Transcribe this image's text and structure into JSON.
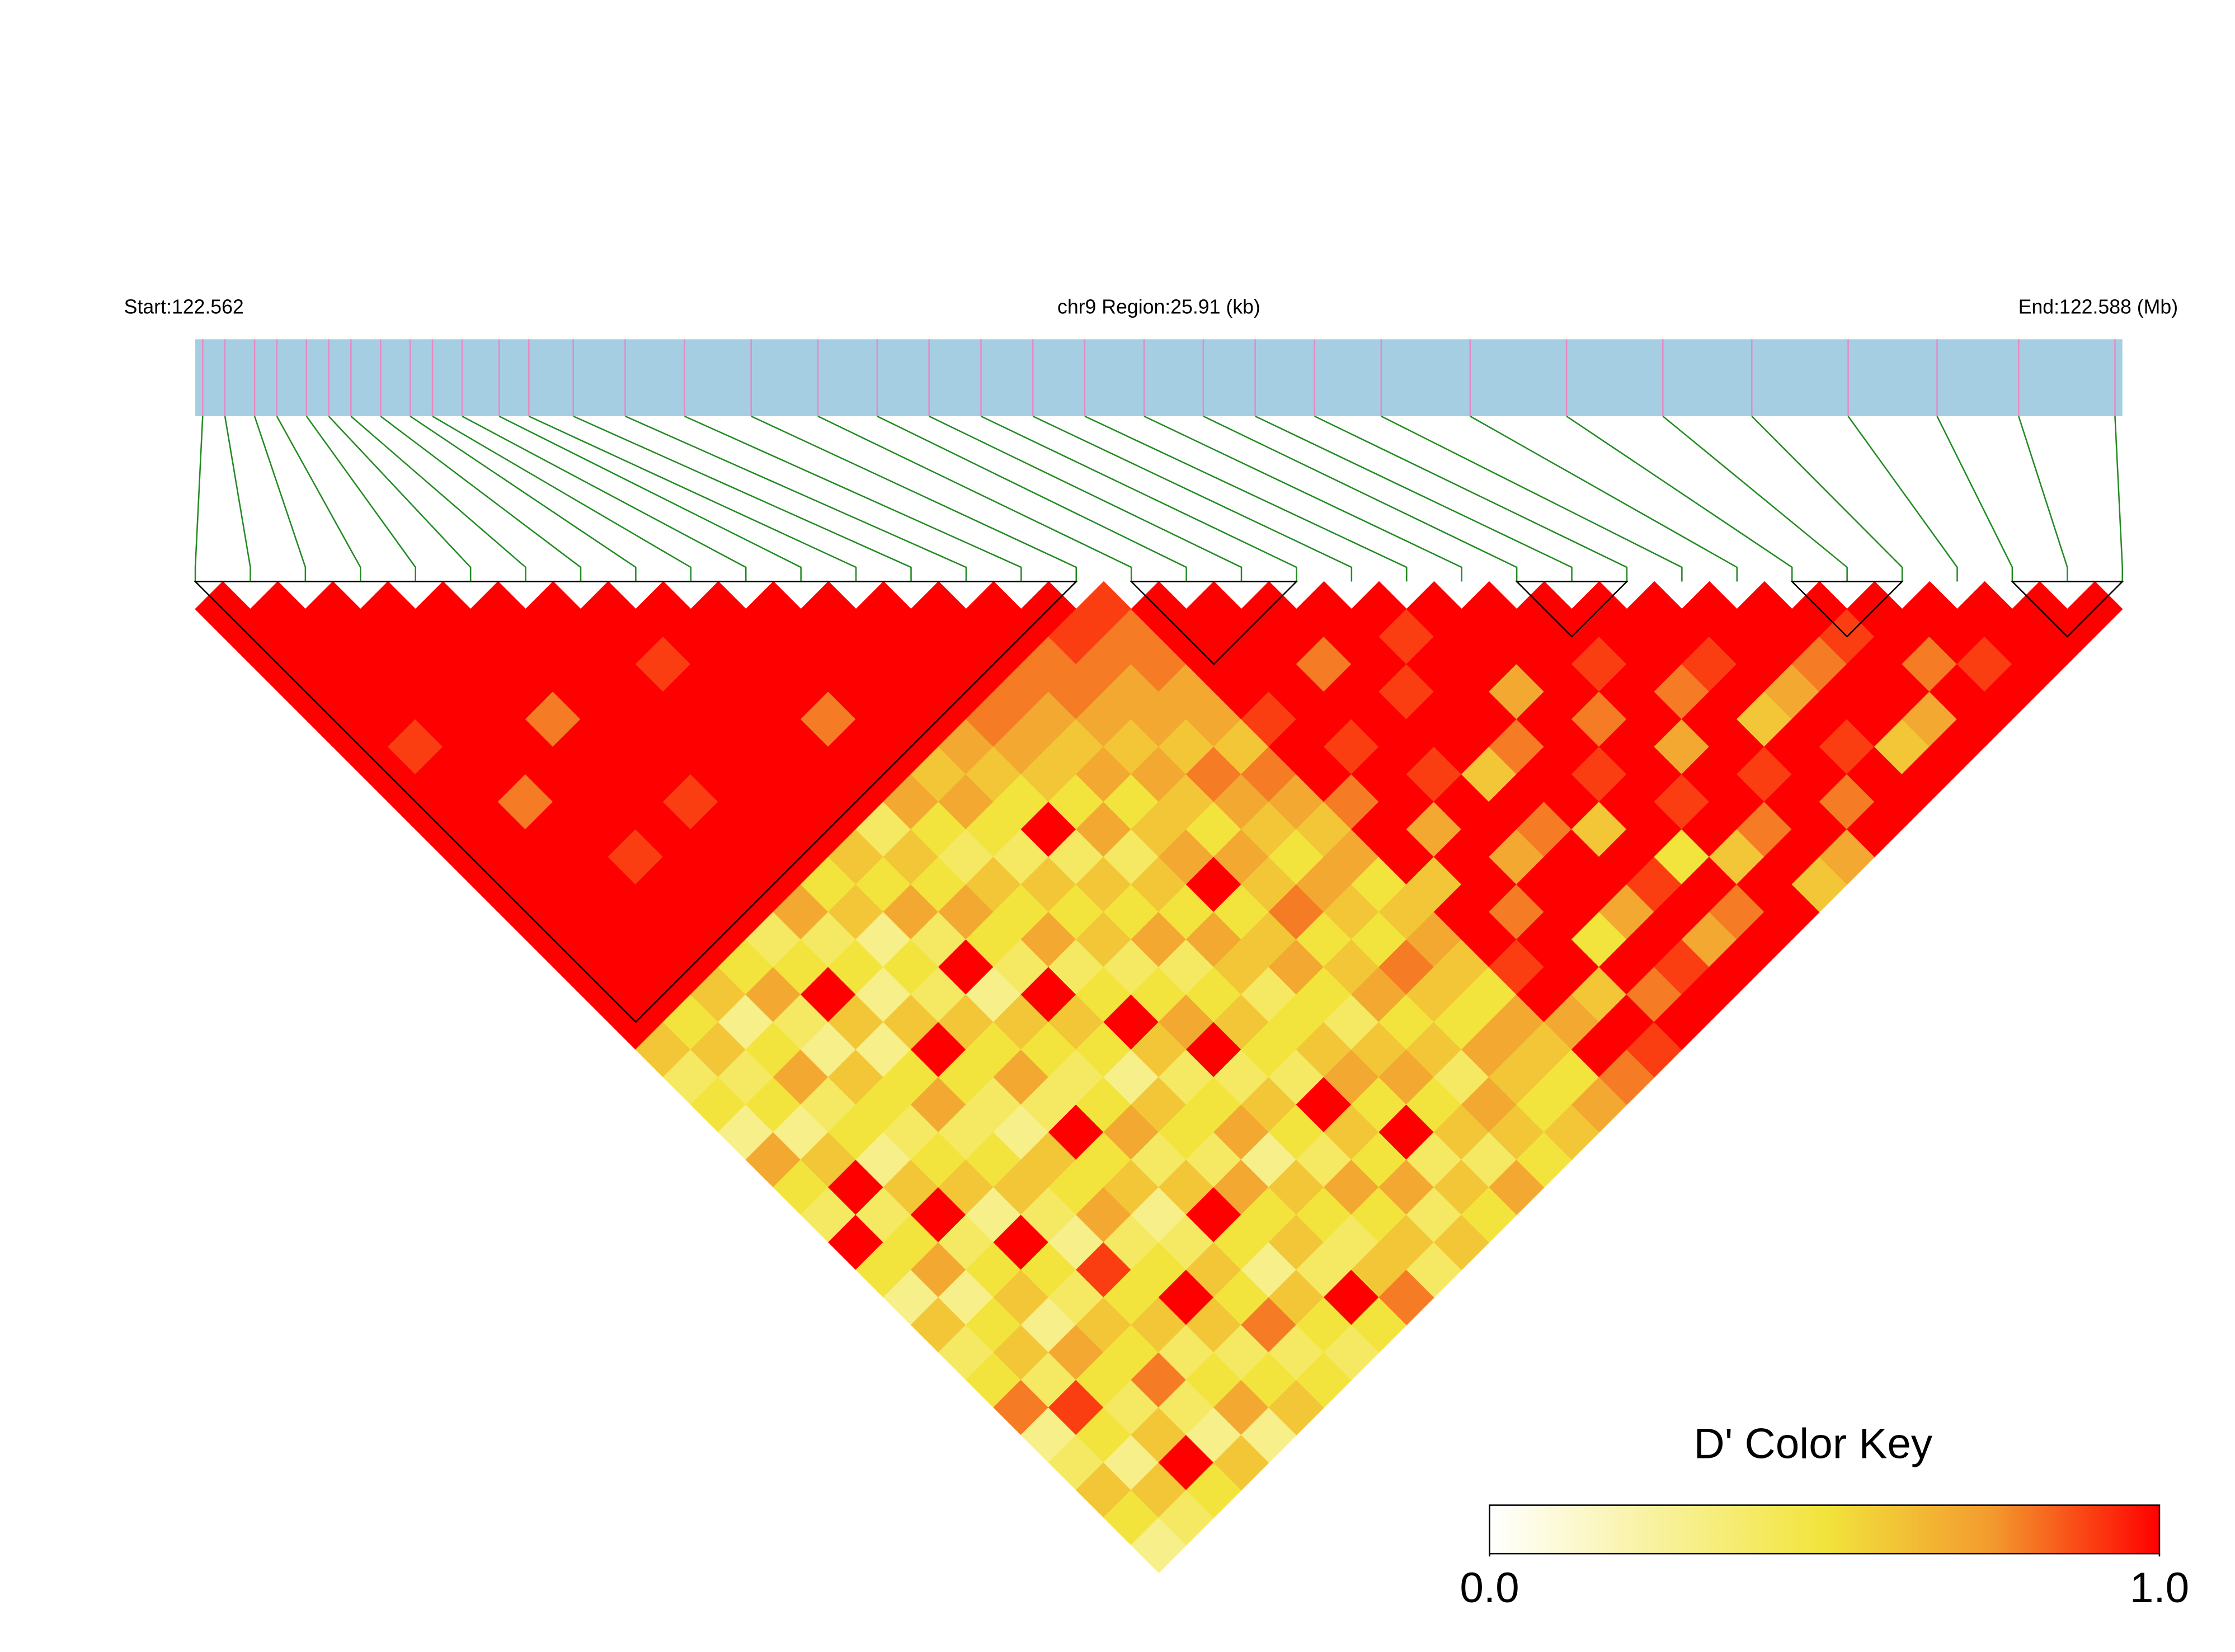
{
  "chart_data": {
    "type": "ld-heatmap",
    "start_label": "Start:122.562",
    "region_label": "chr9 Region:25.91 (kb)",
    "end_label": "End:122.588 (Mb)",
    "xlim": [
      122.562,
      122.588
    ],
    "snp_positions": [
      122.5621,
      122.5624,
      122.5628,
      122.5631,
      122.5635,
      122.5638,
      122.5641,
      122.5645,
      122.5649,
      122.5652,
      122.5656,
      122.5661,
      122.5665,
      122.5671,
      122.5678,
      122.5686,
      122.5695,
      122.5704,
      122.5712,
      122.5719,
      122.5726,
      122.5733,
      122.574,
      122.5748,
      122.5756,
      122.5763,
      122.5771,
      122.578,
      122.5792,
      122.5805,
      122.5818,
      122.583,
      122.5843,
      122.5855,
      122.5866,
      122.5879
    ],
    "ld_matrix": [
      [
        1,
        1,
        1,
        1,
        1,
        1,
        1,
        1,
        1,
        1,
        1,
        1,
        1,
        1,
        1,
        1,
        0.6,
        0.4,
        0.5,
        0.3,
        0.7,
        0.5,
        0.4,
        1,
        0.5,
        0.3,
        0.6,
        0.4,
        0.5,
        0.8,
        0.3,
        0.4,
        0.6,
        0.5,
        0.3
      ],
      [
        1,
        1,
        1,
        1,
        1,
        0.9,
        1,
        1,
        1,
        1,
        1,
        1,
        1,
        1,
        1,
        0.5,
        0.6,
        0.4,
        0.5,
        0.3,
        0.6,
        1,
        0.4,
        0.5,
        0.7,
        0.3,
        0.5,
        0.6,
        0.4,
        0.9,
        0.5,
        0.3,
        0.6,
        0.4
      ],
      [
        1,
        1,
        1,
        1,
        1,
        1,
        1,
        0.8,
        1,
        1,
        1,
        1,
        1,
        1,
        0.6,
        0.3,
        0.5,
        0.7,
        0.4,
        0.5,
        0.3,
        0.6,
        1,
        0.4,
        0.5,
        0.6,
        0.3,
        0.7,
        0.5,
        0.4,
        0.6,
        1,
        0.5
      ],
      [
        1,
        1,
        1,
        1,
        1,
        1,
        1,
        1,
        1,
        0.9,
        1,
        1,
        1,
        0.5,
        0.7,
        0.4,
        0.3,
        0.6,
        0.5,
        0.4,
        0.5,
        0.6,
        0.3,
        1,
        0.5,
        0.4,
        0.6,
        0.5,
        0.8,
        0.4,
        0.3,
        0.6
      ],
      [
        1,
        1,
        1,
        1,
        0.8,
        1,
        1,
        1,
        1,
        1,
        1,
        1,
        0.4,
        0.5,
        1,
        0.6,
        0.3,
        0.5,
        0.7,
        0.4,
        0.5,
        0.6,
        0.4,
        0.3,
        0.9,
        0.5,
        0.6,
        0.4,
        0.5,
        0.7,
        0.3
      ],
      [
        1,
        1,
        1,
        1,
        1,
        1,
        1,
        0.9,
        1,
        1,
        1,
        0.7,
        0.4,
        0.5,
        0.3,
        0.6,
        1,
        0.5,
        0.4,
        0.3,
        0.6,
        0.5,
        0.7,
        0.4,
        0.5,
        1,
        0.6,
        0.4,
        0.5,
        0.6
      ],
      [
        1,
        1,
        1,
        1,
        1,
        1,
        1,
        1,
        1,
        1,
        0.5,
        0.6,
        0.3,
        0.5,
        0.4,
        0.6,
        0.5,
        0.7,
        0.4,
        1,
        0.5,
        0.6,
        0.3,
        0.4,
        0.6,
        0.5,
        0.8,
        0.4,
        0.5
      ],
      [
        1,
        1,
        0.9,
        1,
        1,
        1,
        1,
        1,
        1,
        0.6,
        0.5,
        0.7,
        0.4,
        1,
        0.3,
        0.6,
        0.5,
        0.4,
        0.5,
        0.7,
        0.4,
        0.6,
        1,
        0.5,
        0.3,
        0.6,
        0.5,
        0.4
      ],
      [
        1,
        1,
        1,
        1,
        1,
        1,
        1,
        1,
        0.4,
        0.6,
        0.5,
        0.7,
        0.5,
        0.4,
        1,
        0.6,
        0.5,
        0.3,
        0.6,
        0.5,
        0.4,
        0.7,
        0.5,
        0.6,
        0.4,
        1,
        0.5
      ],
      [
        1,
        1,
        1,
        1,
        0.8,
        1,
        1,
        0.7,
        0.5,
        0.4,
        0.6,
        0.5,
        0.7,
        0.4,
        0.5,
        1,
        0.6,
        0.4,
        0.5,
        0.7,
        0.3,
        0.6,
        0.5,
        0.4,
        0.6,
        0.8
      ],
      [
        1,
        1,
        1,
        1,
        1,
        1,
        0.6,
        0.7,
        0.5,
        0.4,
        0.6,
        0.5,
        0.6,
        0.4,
        0.5,
        0.7,
        1,
        0.4,
        0.6,
        0.5,
        0.4,
        0.7,
        0.5,
        0.6,
        0.4
      ],
      [
        1,
        1,
        1,
        1,
        1,
        0.7,
        0.6,
        0.5,
        1,
        0.4,
        0.6,
        0.5,
        0.7,
        0.4,
        0.5,
        0.6,
        0.5,
        0.4,
        1,
        0.6,
        0.5,
        0.7,
        0.4,
        0.6
      ],
      [
        1,
        1,
        1,
        1,
        0.8,
        0.7,
        0.6,
        0.5,
        0.7,
        0.4,
        0.6,
        0.5,
        0.7,
        0.6,
        0.4,
        0.5,
        0.6,
        0.7,
        0.5,
        1,
        0.4,
        0.6,
        0.5
      ],
      [
        1,
        1,
        1,
        0.8,
        0.7,
        0.6,
        0.7,
        0.5,
        0.6,
        0.7,
        1,
        0.5,
        0.6,
        0.7,
        0.5,
        0.4,
        0.6,
        0.7,
        0.5,
        0.6,
        0.4,
        0.7
      ],
      [
        1,
        1,
        0.8,
        0.8,
        0.7,
        0.6,
        0.7,
        0.6,
        0.5,
        0.7,
        0.6,
        0.8,
        0.5,
        0.6,
        0.7,
        0.5,
        0.6,
        0.4,
        0.7,
        0.6,
        0.5
      ],
      [
        1,
        0.9,
        0.8,
        0.7,
        0.7,
        0.6,
        0.8,
        0.7,
        0.6,
        0.5,
        0.7,
        0.6,
        0.5,
        0.8,
        0.6,
        0.5,
        0.7,
        0.6,
        0.5,
        0.6
      ],
      [
        0.9,
        0.8,
        0.8,
        0.7,
        0.7,
        0.6,
        0.8,
        0.7,
        0.6,
        0.7,
        0.5,
        0.6,
        0.7,
        0.6,
        0.5,
        0.7,
        0.6,
        0.5,
        0.7
      ],
      [
        1,
        1,
        1,
        1,
        0.9,
        1,
        1,
        0.8,
        1,
        1,
        0.6,
        1,
        1,
        0.9,
        1,
        0.7,
        1,
        0.8
      ],
      [
        1,
        1,
        1,
        1,
        1,
        0.9,
        1,
        1,
        0.7,
        1,
        1,
        0.8,
        1,
        1,
        0.6,
        1,
        0.9
      ],
      [
        1,
        1,
        0.8,
        1,
        1,
        1,
        0.9,
        1,
        1,
        0.7,
        1,
        1,
        0.5,
        1,
        0.8,
        1
      ],
      [
        1,
        1,
        1,
        0.9,
        1,
        1,
        0.6,
        1,
        0.8,
        1,
        1,
        0.7,
        1,
        0.9,
        1
      ],
      [
        1,
        0.9,
        1,
        1,
        1,
        0.8,
        1,
        1,
        0.6,
        1,
        0.9,
        1,
        0.7,
        1
      ],
      [
        1,
        1,
        1,
        0.7,
        1,
        1,
        0.9,
        1,
        1,
        0.5,
        1,
        0.8,
        1
      ],
      [
        1,
        1,
        1,
        1,
        0.8,
        1,
        1,
        0.9,
        1,
        0.6,
        1,
        1
      ],
      [
        1,
        1,
        0.9,
        1,
        1,
        0.7,
        1,
        1,
        0.8,
        1,
        0.6
      ],
      [
        1,
        1,
        1,
        0.8,
        1,
        1,
        0.9,
        1,
        1,
        0.7
      ],
      [
        1,
        1,
        0.9,
        1,
        0.6,
        1,
        1,
        0.8,
        1
      ],
      [
        1,
        1,
        1,
        0.7,
        1,
        0.9,
        1,
        1
      ],
      [
        1,
        1,
        0.8,
        1,
        1,
        0.6,
        1
      ],
      [
        1,
        0.9,
        1,
        1,
        0.7,
        1
      ],
      [
        1,
        1,
        0.8,
        1,
        1
      ],
      [
        1,
        1,
        0.9,
        1
      ],
      [
        1,
        1,
        1
      ],
      [
        1,
        1
      ],
      [
        1
      ]
    ],
    "blocks": [
      [
        0,
        16
      ],
      [
        17,
        20
      ],
      [
        24,
        26
      ],
      [
        29,
        31
      ],
      [
        33,
        35
      ]
    ],
    "bar_color": "#a6cee3",
    "snp_line_color": "#e78ac3",
    "connector_color": "#228b22",
    "colorbar_title": "D' Color Key",
    "colorscale": [
      [
        0,
        "#ffffff"
      ],
      [
        0.5,
        "#f2e43c"
      ],
      [
        0.75,
        "#f39a2e"
      ],
      [
        1,
        "#ff0000"
      ]
    ],
    "colorbar_ticks": [
      {
        "value": 0,
        "label": "0.0"
      },
      {
        "value": 1,
        "label": "1.0"
      }
    ]
  }
}
